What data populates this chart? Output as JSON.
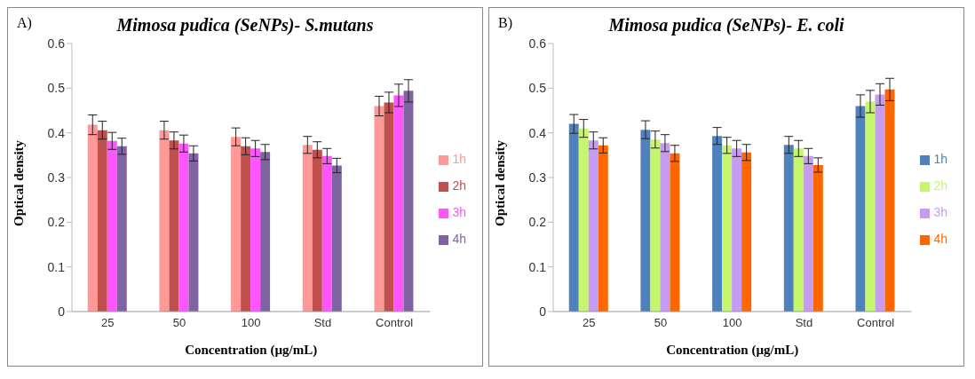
{
  "chart_data": [
    {
      "type": "bar",
      "title": "Mimosa pudica (SeNPs)- S.mutans",
      "xlabel": "Concentration (µg/mL)",
      "ylabel": "Optical density",
      "annotations": [
        "A)"
      ],
      "categories": [
        "25",
        "50",
        "100",
        "Std",
        "Control"
      ],
      "ylim": [
        0,
        0.6
      ],
      "yticks": [
        0,
        0.1,
        0.2,
        0.3,
        0.4,
        0.5,
        0.6
      ],
      "grid": false,
      "legend": "right",
      "series": [
        {
          "name": "1h",
          "color": "#ff9896",
          "values": [
            0.418,
            0.406,
            0.391,
            0.373,
            0.46
          ],
          "errors": [
            0.022,
            0.02,
            0.02,
            0.019,
            0.022
          ]
        },
        {
          "name": "2h",
          "color": "#c0504d",
          "values": [
            0.406,
            0.383,
            0.37,
            0.362,
            0.468
          ],
          "errors": [
            0.02,
            0.019,
            0.019,
            0.018,
            0.023
          ]
        },
        {
          "name": "3h",
          "color": "#ff55ff",
          "values": [
            0.382,
            0.376,
            0.365,
            0.348,
            0.484
          ],
          "errors": [
            0.019,
            0.019,
            0.018,
            0.017,
            0.025
          ]
        },
        {
          "name": "4h",
          "color": "#8064a2",
          "values": [
            0.37,
            0.354,
            0.357,
            0.327,
            0.494
          ],
          "errors": [
            0.018,
            0.017,
            0.017,
            0.016,
            0.025
          ]
        }
      ]
    },
    {
      "type": "bar",
      "title": "Mimosa pudica (SeNPs)- E. coli",
      "xlabel": "Concentration (µg/mL)",
      "ylabel": "Optical density",
      "annotations": [
        "B)"
      ],
      "categories": [
        "25",
        "50",
        "100",
        "Std",
        "Control"
      ],
      "ylim": [
        0,
        0.6
      ],
      "yticks": [
        0,
        0.1,
        0.2,
        0.3,
        0.4,
        0.5,
        0.6
      ],
      "grid": false,
      "legend": "right",
      "series": [
        {
          "name": "1h",
          "color": "#4f81bd",
          "values": [
            0.42,
            0.407,
            0.393,
            0.373,
            0.46
          ],
          "errors": [
            0.021,
            0.02,
            0.019,
            0.019,
            0.025
          ]
        },
        {
          "name": "2h",
          "color": "#c6f56e",
          "values": [
            0.41,
            0.385,
            0.372,
            0.365,
            0.47
          ],
          "errors": [
            0.02,
            0.019,
            0.018,
            0.018,
            0.025
          ]
        },
        {
          "name": "3h",
          "color": "#c59cf2",
          "values": [
            0.383,
            0.377,
            0.365,
            0.348,
            0.486
          ],
          "errors": [
            0.019,
            0.019,
            0.018,
            0.017,
            0.024
          ]
        },
        {
          "name": "4h",
          "color": "#ff6600",
          "values": [
            0.372,
            0.354,
            0.356,
            0.328,
            0.497
          ],
          "errors": [
            0.017,
            0.018,
            0.018,
            0.016,
            0.025
          ]
        }
      ]
    }
  ]
}
